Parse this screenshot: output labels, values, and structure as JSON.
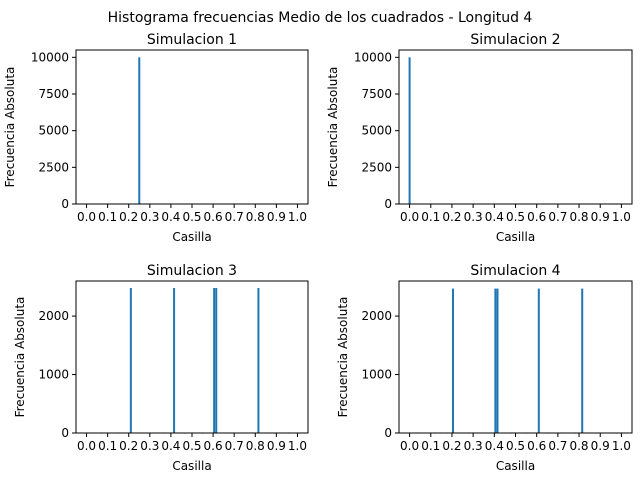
{
  "figure_title": "Histograma frecuencias Medio de los cuadrados - Longitud 4",
  "chart_data": [
    {
      "type": "bar",
      "title": "Simulacion 1",
      "xlabel": "Casilla",
      "ylabel": "Frecuencia Absoluta",
      "xlim": [
        -0.05,
        1.05
      ],
      "ylim": [
        0,
        10500
      ],
      "xticks": [
        "0.0",
        "0.1",
        "0.2",
        "0.3",
        "0.4",
        "0.5",
        "0.6",
        "0.7",
        "0.8",
        "0.9",
        "1.0"
      ],
      "yticks": [
        "0",
        "2500",
        "5000",
        "7500",
        "10000"
      ],
      "bar_color": "#1f77b4",
      "bars": [
        {
          "x": 0.25,
          "y": 10000
        }
      ]
    },
    {
      "type": "bar",
      "title": "Simulacion 2",
      "xlabel": "Casilla",
      "ylabel": "Frecuencia Absoluta",
      "xlim": [
        -0.05,
        1.05
      ],
      "ylim": [
        0,
        10500
      ],
      "xticks": [
        "0.0",
        "0.1",
        "0.2",
        "0.3",
        "0.4",
        "0.5",
        "0.6",
        "0.7",
        "0.8",
        "0.9",
        "1.0"
      ],
      "yticks": [
        "0",
        "2500",
        "5000",
        "7500",
        "10000"
      ],
      "bar_color": "#1f77b4",
      "bars": [
        {
          "x": 0.0,
          "y": 10000
        }
      ]
    },
    {
      "type": "bar",
      "title": "Simulacion 3",
      "xlabel": "Casilla",
      "ylabel": "Frecuencia Absoluta",
      "xlim": [
        -0.05,
        1.05
      ],
      "ylim": [
        0,
        2600
      ],
      "xticks": [
        "0.0",
        "0.1",
        "0.2",
        "0.3",
        "0.4",
        "0.5",
        "0.6",
        "0.7",
        "0.8",
        "0.9",
        "1.0"
      ],
      "yticks": [
        "0",
        "1000",
        "2000"
      ],
      "bar_color": "#1f77b4",
      "bars": [
        {
          "x": 0.01,
          "y": 5
        },
        {
          "x": 0.03,
          "y": 5
        },
        {
          "x": 0.07,
          "y": 4
        },
        {
          "x": 0.11,
          "y": 5
        },
        {
          "x": 0.15,
          "y": 4
        },
        {
          "x": 0.18,
          "y": 5
        },
        {
          "x": 0.21,
          "y": 2480
        },
        {
          "x": 0.24,
          "y": 6
        },
        {
          "x": 0.27,
          "y": 5
        },
        {
          "x": 0.29,
          "y": 4
        },
        {
          "x": 0.33,
          "y": 5
        },
        {
          "x": 0.37,
          "y": 4
        },
        {
          "x": 0.415,
          "y": 2480
        },
        {
          "x": 0.44,
          "y": 5
        },
        {
          "x": 0.47,
          "y": 4
        },
        {
          "x": 0.51,
          "y": 5
        },
        {
          "x": 0.55,
          "y": 4
        },
        {
          "x": 0.605,
          "y": 2480
        },
        {
          "x": 0.615,
          "y": 2480
        },
        {
          "x": 0.66,
          "y": 5
        },
        {
          "x": 0.69,
          "y": 6
        },
        {
          "x": 0.72,
          "y": 4
        },
        {
          "x": 0.76,
          "y": 5
        },
        {
          "x": 0.815,
          "y": 2480
        },
        {
          "x": 0.85,
          "y": 5
        },
        {
          "x": 0.89,
          "y": 4
        },
        {
          "x": 0.92,
          "y": 5
        },
        {
          "x": 0.96,
          "y": 4
        }
      ]
    },
    {
      "type": "bar",
      "title": "Simulacion 4",
      "xlabel": "Casilla",
      "ylabel": "Frecuencia Absoluta",
      "xlim": [
        -0.05,
        1.05
      ],
      "ylim": [
        0,
        2600
      ],
      "xticks": [
        "0.0",
        "0.1",
        "0.2",
        "0.3",
        "0.4",
        "0.5",
        "0.6",
        "0.7",
        "0.8",
        "0.9",
        "1.0"
      ],
      "yticks": [
        "0",
        "1000",
        "2000"
      ],
      "bar_color": "#1f77b4",
      "bars": [
        {
          "x": 0.01,
          "y": 5
        },
        {
          "x": 0.04,
          "y": 4
        },
        {
          "x": 0.08,
          "y": 5
        },
        {
          "x": 0.12,
          "y": 4
        },
        {
          "x": 0.15,
          "y": 5
        },
        {
          "x": 0.18,
          "y": 4
        },
        {
          "x": 0.205,
          "y": 2470
        },
        {
          "x": 0.24,
          "y": 5
        },
        {
          "x": 0.28,
          "y": 4
        },
        {
          "x": 0.31,
          "y": 5
        },
        {
          "x": 0.35,
          "y": 6
        },
        {
          "x": 0.38,
          "y": 5
        },
        {
          "x": 0.405,
          "y": 2470
        },
        {
          "x": 0.415,
          "y": 2470
        },
        {
          "x": 0.45,
          "y": 5
        },
        {
          "x": 0.48,
          "y": 4
        },
        {
          "x": 0.52,
          "y": 5
        },
        {
          "x": 0.55,
          "y": 4
        },
        {
          "x": 0.58,
          "y": 5
        },
        {
          "x": 0.61,
          "y": 2470
        },
        {
          "x": 0.65,
          "y": 4
        },
        {
          "x": 0.68,
          "y": 5
        },
        {
          "x": 0.71,
          "y": 4
        },
        {
          "x": 0.75,
          "y": 5
        },
        {
          "x": 0.78,
          "y": 4
        },
        {
          "x": 0.815,
          "y": 2470
        },
        {
          "x": 0.85,
          "y": 5
        },
        {
          "x": 0.88,
          "y": 4
        },
        {
          "x": 0.92,
          "y": 5
        },
        {
          "x": 0.95,
          "y": 6
        },
        {
          "x": 0.98,
          "y": 5
        }
      ]
    }
  ]
}
